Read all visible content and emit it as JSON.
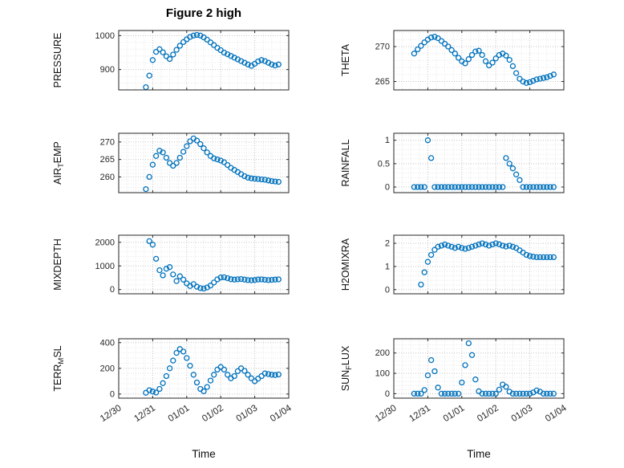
{
  "figure": {
    "title": "Figure 2 high",
    "background": "#ffffff",
    "marker_color": "#0072BD",
    "marker_style": "open-circle",
    "grid": "dotted major + minor"
  },
  "x_axis": {
    "label": "Time",
    "x_unit": "days from 12/30",
    "xlim": [
      0,
      5
    ],
    "ticks": [
      0,
      1,
      2,
      3,
      4,
      5
    ],
    "tick_labels": [
      "12/30",
      "12/31",
      "01/01",
      "01/02",
      "01/03",
      "01/04"
    ],
    "minor_step": 0.25
  },
  "chart_data": [
    {
      "id": "pressure",
      "type": "scatter",
      "col": 0,
      "row": 0,
      "ylabel": "PRESSURE",
      "ylabel_parts": [
        {
          "t": "PRESSURE"
        }
      ],
      "yticks": [
        900,
        1000
      ],
      "ylim": [
        840,
        1015
      ],
      "x": [
        0.8,
        0.9,
        1,
        1.1,
        1.2,
        1.3,
        1.4,
        1.5,
        1.6,
        1.7,
        1.8,
        1.9,
        2,
        2.1,
        2.2,
        2.3,
        2.4,
        2.5,
        2.6,
        2.7,
        2.8,
        2.9,
        3,
        3.1,
        3.2,
        3.3,
        3.4,
        3.5,
        3.6,
        3.7,
        3.8,
        3.9,
        4,
        4.1,
        4.2,
        4.3,
        4.4,
        4.5,
        4.6,
        4.7
      ],
      "y": [
        848,
        882,
        928,
        952,
        960,
        951,
        939,
        931,
        944,
        958,
        970,
        981,
        989,
        996,
        1000,
        1002,
        1000,
        995,
        988,
        980,
        972,
        964,
        957,
        950,
        945,
        940,
        935,
        930,
        925,
        920,
        915,
        911,
        917,
        924,
        928,
        925,
        920,
        915,
        912,
        915
      ]
    },
    {
      "id": "theta",
      "type": "scatter",
      "col": 1,
      "row": 0,
      "ylabel": "THETA",
      "ylabel_parts": [
        {
          "t": "THETA"
        }
      ],
      "yticks": [
        265,
        270
      ],
      "ylim": [
        263.8,
        272.3
      ],
      "x": [
        0.6,
        0.7,
        0.8,
        0.9,
        1,
        1.1,
        1.2,
        1.3,
        1.4,
        1.5,
        1.6,
        1.7,
        1.8,
        1.9,
        2,
        2.1,
        2.2,
        2.3,
        2.4,
        2.5,
        2.6,
        2.7,
        2.8,
        2.9,
        3,
        3.1,
        3.2,
        3.3,
        3.4,
        3.5,
        3.6,
        3.7,
        3.8,
        3.9,
        4,
        4.1,
        4.2,
        4.3,
        4.4,
        4.5,
        4.6,
        4.7
      ],
      "y": [
        269,
        269.6,
        270.1,
        270.6,
        271,
        271.3,
        271.4,
        271.2,
        270.8,
        270.4,
        270,
        269.5,
        269,
        268.4,
        267.9,
        267.6,
        268.2,
        268.8,
        269.3,
        269.4,
        268.8,
        267.9,
        267.3,
        267.7,
        268.3,
        268.8,
        269,
        268.7,
        268.1,
        267.2,
        266.2,
        265.4,
        265,
        264.8,
        264.9,
        265.1,
        265.3,
        265.4,
        265.5,
        265.6,
        265.8,
        266
      ]
    },
    {
      "id": "air-temp",
      "type": "scatter",
      "col": 0,
      "row": 1,
      "ylabel": "AIR_TEMP",
      "ylabel_parts": [
        {
          "t": "AIR"
        },
        {
          "t": "T",
          "sub": true
        },
        {
          "t": "EMP"
        }
      ],
      "yticks": [
        260,
        265,
        270
      ],
      "ylim": [
        255.5,
        272.5
      ],
      "x": [
        0.8,
        0.9,
        1,
        1.1,
        1.2,
        1.3,
        1.4,
        1.5,
        1.6,
        1.7,
        1.8,
        1.9,
        2,
        2.1,
        2.2,
        2.3,
        2.4,
        2.5,
        2.6,
        2.7,
        2.8,
        2.9,
        3,
        3.1,
        3.2,
        3.3,
        3.4,
        3.5,
        3.6,
        3.7,
        3.8,
        3.9,
        4,
        4.1,
        4.2,
        4.3,
        4.4,
        4.5,
        4.6,
        4.7
      ],
      "y": [
        256.5,
        260,
        263.5,
        266,
        267.5,
        267,
        265.5,
        264,
        263.2,
        264,
        265.5,
        267.2,
        268.8,
        270.2,
        271,
        270.4,
        269.4,
        268.2,
        267,
        266,
        265.3,
        265,
        264.7,
        264.2,
        263.4,
        262.6,
        262,
        261.4,
        260.8,
        260.2,
        259.8,
        259.6,
        259.5,
        259.4,
        259.3,
        259.2,
        259,
        258.8,
        258.7,
        258.6
      ]
    },
    {
      "id": "rainfall",
      "type": "scatter",
      "col": 1,
      "row": 1,
      "ylabel": "RAINFALL",
      "ylabel_parts": [
        {
          "t": "RAINFALL"
        }
      ],
      "yticks": [
        0,
        0.5,
        1
      ],
      "ylim": [
        -0.12,
        1.15
      ],
      "x": [
        0.6,
        0.7,
        0.8,
        0.9,
        1,
        1.1,
        1.2,
        1.3,
        1.4,
        1.5,
        1.6,
        1.7,
        1.8,
        1.9,
        2,
        2.1,
        2.2,
        2.3,
        2.4,
        2.5,
        2.6,
        2.7,
        2.8,
        2.9,
        3,
        3.1,
        3.2,
        3.3,
        3.4,
        3.5,
        3.6,
        3.7,
        3.8,
        3.9,
        4,
        4.1,
        4.2,
        4.3,
        4.4,
        4.5,
        4.6,
        4.7
      ],
      "y": [
        0,
        0,
        0,
        0,
        1,
        0.62,
        0,
        0,
        0,
        0,
        0,
        0,
        0,
        0,
        0,
        0,
        0,
        0,
        0,
        0,
        0,
        0,
        0,
        0,
        0,
        0,
        0,
        0.62,
        0.5,
        0.4,
        0.27,
        0.15,
        0,
        0,
        0,
        0,
        0,
        0,
        0,
        0,
        0,
        0
      ]
    },
    {
      "id": "mixdepth",
      "type": "scatter",
      "col": 0,
      "row": 2,
      "ylabel": "MIXDEPTH",
      "ylabel_parts": [
        {
          "t": "MIXDEPTH"
        }
      ],
      "yticks": [
        0,
        1000,
        2000
      ],
      "ylim": [
        -180,
        2300
      ],
      "x": [
        0.9,
        1,
        1.1,
        1.2,
        1.3,
        1.4,
        1.5,
        1.6,
        1.7,
        1.8,
        1.9,
        2,
        2.1,
        2.2,
        2.3,
        2.4,
        2.5,
        2.6,
        2.7,
        2.8,
        2.9,
        3,
        3.1,
        3.2,
        3.3,
        3.4,
        3.5,
        3.6,
        3.7,
        3.8,
        3.9,
        4,
        4.1,
        4.2,
        4.3,
        4.4,
        4.5,
        4.6,
        4.7
      ],
      "y": [
        2050,
        1900,
        1300,
        820,
        600,
        880,
        950,
        640,
        360,
        560,
        420,
        260,
        150,
        230,
        120,
        60,
        40,
        90,
        170,
        300,
        430,
        510,
        520,
        480,
        440,
        420,
        435,
        445,
        420,
        400,
        390,
        405,
        425,
        430,
        415,
        400,
        410,
        420,
        430
      ]
    },
    {
      "id": "h2omixra",
      "type": "scatter",
      "col": 1,
      "row": 2,
      "ylabel": "H2OMIXRA",
      "ylabel_parts": [
        {
          "t": "H2OMIXRA"
        }
      ],
      "yticks": [
        0,
        1,
        2
      ],
      "ylim": [
        -0.18,
        2.35
      ],
      "x": [
        0.8,
        0.9,
        1,
        1.1,
        1.2,
        1.3,
        1.4,
        1.5,
        1.6,
        1.7,
        1.8,
        1.9,
        2,
        2.1,
        2.2,
        2.3,
        2.4,
        2.5,
        2.6,
        2.7,
        2.8,
        2.9,
        3,
        3.1,
        3.2,
        3.3,
        3.4,
        3.5,
        3.6,
        3.7,
        3.8,
        3.9,
        4,
        4.1,
        4.2,
        4.3,
        4.4,
        4.5,
        4.6,
        4.7
      ],
      "y": [
        0.22,
        0.75,
        1.2,
        1.5,
        1.72,
        1.85,
        1.9,
        1.95,
        1.9,
        1.85,
        1.8,
        1.85,
        1.8,
        1.76,
        1.8,
        1.85,
        1.9,
        1.95,
        2,
        1.95,
        1.9,
        1.95,
        2,
        1.96,
        1.9,
        1.86,
        1.9,
        1.85,
        1.8,
        1.7,
        1.6,
        1.5,
        1.45,
        1.42,
        1.4,
        1.4,
        1.4,
        1.4,
        1.4,
        1.4
      ]
    },
    {
      "id": "terr-msl",
      "type": "scatter",
      "col": 0,
      "row": 3,
      "ylabel": "TERR_MSL",
      "ylabel_parts": [
        {
          "t": "TERR"
        },
        {
          "t": "M",
          "sub": true
        },
        {
          "t": "SL"
        }
      ],
      "yticks": [
        0,
        200,
        400
      ],
      "ylim": [
        -32,
        430
      ],
      "x": [
        0.8,
        0.9,
        1,
        1.1,
        1.2,
        1.3,
        1.4,
        1.5,
        1.6,
        1.7,
        1.8,
        1.9,
        2,
        2.1,
        2.2,
        2.3,
        2.4,
        2.5,
        2.6,
        2.7,
        2.8,
        2.9,
        3,
        3.1,
        3.2,
        3.3,
        3.4,
        3.5,
        3.6,
        3.7,
        3.8,
        3.9,
        4,
        4.1,
        4.2,
        4.3,
        4.4,
        4.5,
        4.6,
        4.7
      ],
      "y": [
        10,
        30,
        20,
        12,
        40,
        85,
        140,
        200,
        260,
        320,
        350,
        330,
        280,
        220,
        150,
        90,
        40,
        22,
        55,
        105,
        150,
        190,
        210,
        190,
        150,
        122,
        140,
        178,
        200,
        180,
        150,
        122,
        100,
        120,
        140,
        160,
        155,
        150,
        148,
        152
      ]
    },
    {
      "id": "sun-flux",
      "type": "scatter",
      "col": 1,
      "row": 3,
      "ylabel": "SUN_FLUX",
      "ylabel_parts": [
        {
          "t": "SUN"
        },
        {
          "t": "F",
          "sub": true
        },
        {
          "t": "LUX"
        }
      ],
      "yticks": [
        0,
        100,
        200
      ],
      "ylim": [
        -22,
        270
      ],
      "x": [
        0.6,
        0.7,
        0.8,
        0.9,
        1,
        1.1,
        1.2,
        1.3,
        1.4,
        1.5,
        1.6,
        1.7,
        1.8,
        1.9,
        2,
        2.1,
        2.2,
        2.3,
        2.4,
        2.5,
        2.6,
        2.7,
        2.8,
        2.9,
        3,
        3.1,
        3.2,
        3.3,
        3.4,
        3.5,
        3.6,
        3.7,
        3.8,
        3.9,
        4,
        4.1,
        4.2,
        4.3,
        4.4,
        4.5,
        4.6,
        4.7
      ],
      "y": [
        0,
        0,
        0,
        18,
        90,
        165,
        110,
        30,
        0,
        0,
        0,
        0,
        0,
        0,
        55,
        140,
        248,
        190,
        70,
        12,
        0,
        0,
        0,
        0,
        0,
        20,
        45,
        34,
        10,
        0,
        0,
        0,
        0,
        0,
        0,
        6,
        16,
        10,
        0,
        0,
        0,
        0
      ]
    }
  ]
}
